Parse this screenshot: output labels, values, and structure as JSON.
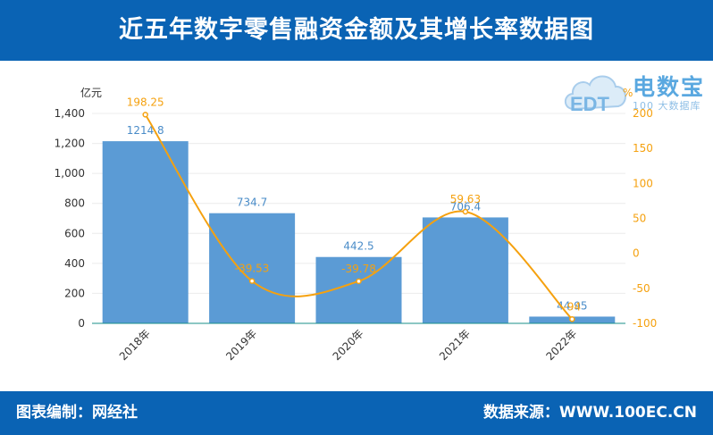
{
  "header": {
    "title": "近五年数字零售融资金额及其增长率数据图"
  },
  "footer": {
    "left": "图表编制：网经社",
    "right": "数据来源：WWW.100EC.CN"
  },
  "logo": {
    "text": "电数宝",
    "sub": "100 大数据库",
    "mark": "EDT"
  },
  "colors": {
    "bar": "#5b9bd5",
    "line": "#f5a10f",
    "header": "#0a63b4"
  },
  "chart_data": {
    "type": "bar+line",
    "categories": [
      "2018年",
      "2019年",
      "2020年",
      "2021年",
      "2022年"
    ],
    "series": [
      {
        "values": [
          1214.8,
          734.7,
          442.5,
          706.4,
          44.95
        ],
        "labels": [
          "1214.8",
          "734.7",
          "442.5",
          "706.4",
          "44.95"
        ],
        "axis": "left"
      },
      {
        "values": [
          198.25,
          -39.53,
          -39.78,
          59.63,
          -94.0
        ],
        "labels": [
          "198.25",
          "-39.53",
          "-39.78",
          "59.63",
          "-94"
        ],
        "axis": "right"
      }
    ],
    "y_left": {
      "unit": "亿元",
      "ticks": [
        "0",
        "200",
        "400",
        "600",
        "800",
        "1,000",
        "1,200",
        "1,400"
      ],
      "lim": [
        0,
        1400
      ]
    },
    "y_right": {
      "unit": "%",
      "ticks": [
        "-100",
        "-50",
        "0",
        "50",
        "100",
        "150",
        "200"
      ],
      "lim": [
        -100,
        200
      ]
    },
    "grid": true,
    "legend": "none"
  }
}
